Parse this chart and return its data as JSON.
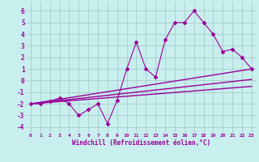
{
  "xlabel": "Windchill (Refroidissement éolien,°C)",
  "xlim": [
    -0.5,
    23.5
  ],
  "ylim": [
    -4.5,
    6.8
  ],
  "yticks": [
    -4,
    -3,
    -2,
    -1,
    0,
    1,
    2,
    3,
    4,
    5,
    6
  ],
  "xticks": [
    0,
    1,
    2,
    3,
    4,
    5,
    6,
    7,
    8,
    9,
    10,
    11,
    12,
    13,
    14,
    15,
    16,
    17,
    18,
    19,
    20,
    21,
    22,
    23
  ],
  "bg_color": "#c8eeee",
  "grid_color": "#aacccc",
  "line_color": "#990099",
  "series": [
    {
      "x": [
        0,
        1,
        2,
        3,
        4,
        5,
        6,
        7,
        8,
        9,
        10,
        11,
        12,
        13,
        14,
        15,
        16,
        17,
        18,
        19,
        20,
        21,
        22,
        23
      ],
      "y": [
        -2,
        -2,
        -1.8,
        -1.5,
        -2,
        -3,
        -2.5,
        -2,
        -3.7,
        -1.7,
        1,
        3.3,
        1,
        0.3,
        3.5,
        5,
        5,
        6,
        5,
        4,
        2.5,
        2.7,
        2,
        1
      ],
      "marker": "D",
      "ms": 2.0,
      "lw": 0.8
    },
    {
      "x": [
        0,
        23
      ],
      "y": [
        -2,
        1
      ],
      "marker": null,
      "ms": 0,
      "lw": 1.0
    },
    {
      "x": [
        0,
        23
      ],
      "y": [
        -2,
        0.1
      ],
      "marker": null,
      "ms": 0,
      "lw": 1.0
    },
    {
      "x": [
        0,
        23
      ],
      "y": [
        -2,
        -0.5
      ],
      "marker": null,
      "ms": 0,
      "lw": 1.0
    }
  ]
}
